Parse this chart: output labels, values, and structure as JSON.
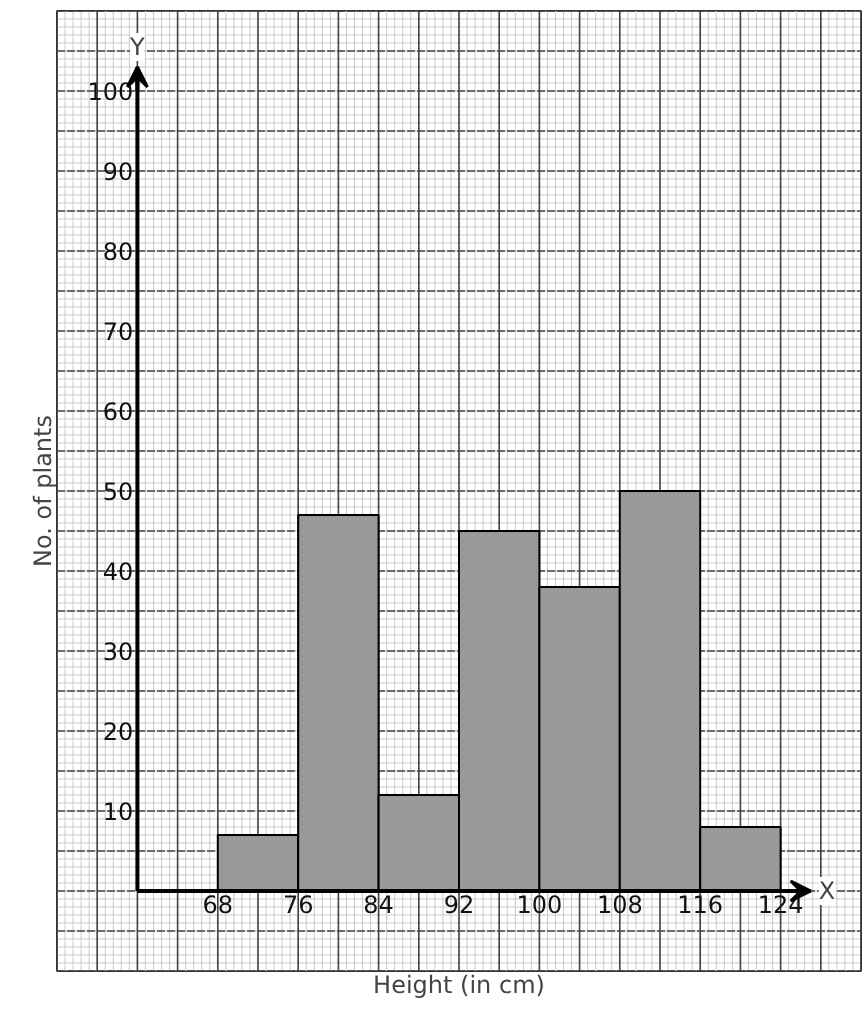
{
  "chart_data": {
    "type": "histogram",
    "xlabel": "Height (in cm)",
    "ylabel": "No. of plants",
    "bins": [
      68,
      76,
      84,
      92,
      100,
      108,
      116,
      124
    ],
    "values": [
      7,
      47,
      12,
      45,
      38,
      50,
      8
    ],
    "color": "#999999",
    "xlim": [
      52,
      132
    ],
    "ylim": [
      -10,
      110
    ],
    "xticks": [
      68,
      76,
      84,
      92,
      100,
      108,
      116,
      124
    ],
    "yticks": [
      10,
      20,
      30,
      40,
      50,
      60,
      70,
      80,
      90,
      100
    ],
    "grid": true,
    "annotations": [
      "X",
      "Y"
    ]
  }
}
